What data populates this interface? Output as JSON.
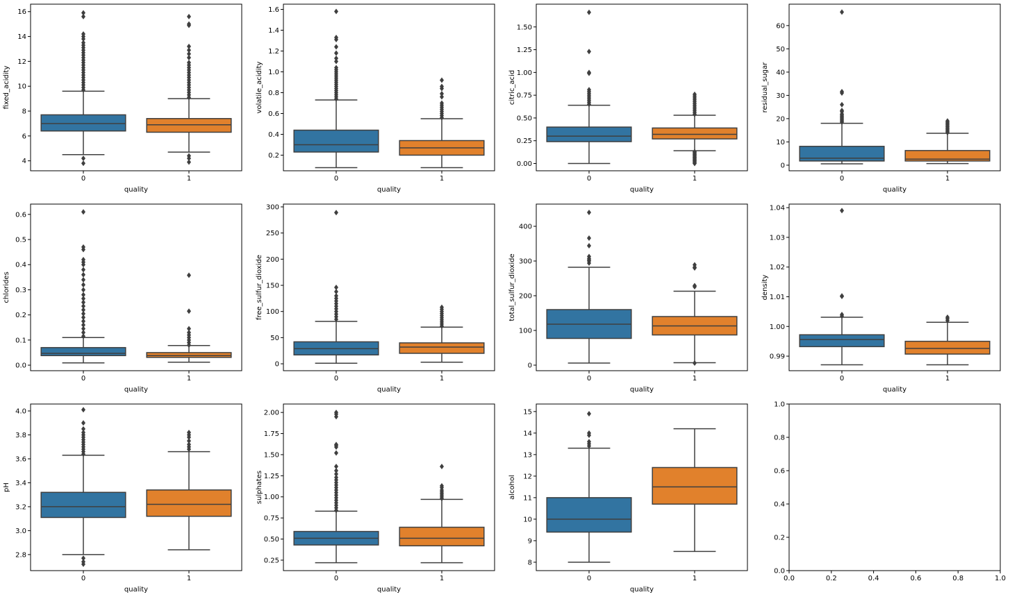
{
  "chart_data": [
    {
      "type": "box",
      "xlabel": "quality",
      "ylabel": "fixed_acidity",
      "categories": [
        "0",
        "1"
      ],
      "ylim": [
        3.2,
        16.6
      ],
      "yticks": [
        4,
        6,
        8,
        10,
        12,
        14,
        16
      ],
      "boxes": [
        {
          "color": "#3274a1",
          "whislo": 4.5,
          "q1": 6.4,
          "med": 7.0,
          "q3": 7.7,
          "whishi": 9.6,
          "fliers": [
            3.8,
            4.2,
            9.7,
            9.9,
            10.1,
            10.3,
            10.5,
            10.7,
            10.9,
            11.1,
            11.3,
            11.5,
            11.7,
            11.9,
            12.1,
            12.3,
            12.5,
            12.7,
            12.9,
            13.1,
            13.3,
            13.5,
            13.8,
            14.0,
            14.2,
            15.6,
            15.9
          ]
        },
        {
          "color": "#e1812c",
          "whislo": 4.7,
          "q1": 6.3,
          "med": 6.9,
          "q3": 7.4,
          "whishi": 9.0,
          "fliers": [
            3.9,
            4.2,
            4.4,
            9.1,
            9.3,
            9.5,
            9.7,
            9.9,
            10.1,
            10.3,
            10.5,
            10.7,
            10.9,
            11.1,
            11.3,
            11.5,
            11.7,
            11.9,
            12.3,
            12.6,
            12.9,
            13.2,
            14.9,
            15.0,
            15.6
          ]
        }
      ]
    },
    {
      "type": "box",
      "xlabel": "quality",
      "ylabel": "volatile_acidity",
      "categories": [
        "0",
        "1"
      ],
      "ylim": [
        0.05,
        1.65
      ],
      "yticks": [
        0.2,
        0.4,
        0.6,
        0.8,
        {
          "value": 1.0,
          "label": "1.0"
        },
        1.2,
        1.4,
        1.6
      ],
      "boxes": [
        {
          "color": "#3274a1",
          "whislo": 0.08,
          "q1": 0.23,
          "med": 0.3,
          "q3": 0.44,
          "whishi": 0.73,
          "fliers": [
            0.74,
            0.76,
            0.78,
            0.8,
            0.82,
            0.84,
            0.86,
            0.88,
            0.9,
            0.92,
            0.94,
            0.96,
            0.98,
            1.0,
            1.02,
            1.04,
            1.1,
            1.13,
            1.18,
            1.24,
            1.31,
            1.33,
            1.58
          ]
        },
        {
          "color": "#e1812c",
          "whislo": 0.08,
          "q1": 0.2,
          "med": 0.27,
          "q3": 0.34,
          "whishi": 0.55,
          "fliers": [
            0.56,
            0.58,
            0.6,
            0.62,
            0.64,
            0.66,
            0.68,
            0.7,
            0.76,
            0.79,
            0.84,
            0.86,
            0.92
          ]
        }
      ]
    },
    {
      "type": "box",
      "xlabel": "quality",
      "ylabel": "citric_acid",
      "categories": [
        "0",
        "1"
      ],
      "ylim": [
        -0.08,
        1.75
      ],
      "yticks": [
        {
          "value": 0,
          "label": "0.00"
        },
        0.25,
        {
          "value": 0.5,
          "label": "0.50"
        },
        0.75,
        {
          "value": 1.0,
          "label": "1.00"
        },
        1.25,
        {
          "value": 1.5,
          "label": "1.50"
        }
      ],
      "boxes": [
        {
          "color": "#3274a1",
          "whislo": 0,
          "q1": 0.24,
          "med": 0.3,
          "q3": 0.4,
          "whishi": 0.64,
          "fliers": [
            0.65,
            0.67,
            0.69,
            0.71,
            0.73,
            0.75,
            0.77,
            0.79,
            0.81,
            0.99,
            1.0,
            1.23,
            1.66
          ]
        },
        {
          "color": "#e1812c",
          "whislo": 0.14,
          "q1": 0.27,
          "med": 0.32,
          "q3": 0.39,
          "whishi": 0.53,
          "fliers": [
            0,
            0.01,
            0.02,
            0.03,
            0.04,
            0.05,
            0.06,
            0.07,
            0.08,
            0.09,
            0.1,
            0.11,
            0.12,
            0.13,
            0.54,
            0.56,
            0.58,
            0.6,
            0.62,
            0.64,
            0.66,
            0.68,
            0.7,
            0.72,
            0.74,
            0.76
          ]
        }
      ]
    },
    {
      "type": "box",
      "xlabel": "quality",
      "ylabel": "residual_sugar",
      "categories": [
        "0",
        "1"
      ],
      "ylim": [
        -2.4,
        69.2
      ],
      "yticks": [
        0,
        10,
        20,
        30,
        40,
        50,
        60
      ],
      "boxes": [
        {
          "color": "#3274a1",
          "whislo": 0.6,
          "q1": 1.8,
          "med": 3.0,
          "q3": 8.1,
          "whishi": 18,
          "fliers": [
            18.5,
            19,
            19.5,
            20,
            20.5,
            21,
            21.5,
            22,
            23,
            23.5,
            26,
            31,
            31.6,
            65.8
          ]
        },
        {
          "color": "#e1812c",
          "whislo": 0.7,
          "q1": 1.8,
          "med": 2.6,
          "q3": 6.3,
          "whishi": 13.7,
          "fliers": [
            14,
            14.5,
            15,
            15.5,
            16,
            16.5,
            17,
            17.5,
            18,
            18.5,
            19
          ]
        }
      ]
    },
    {
      "type": "box",
      "xlabel": "quality",
      "ylabel": "chlorides",
      "categories": [
        "0",
        "1"
      ],
      "ylim": [
        -0.022,
        0.641
      ],
      "yticks": [
        {
          "value": 0,
          "label": "0.0"
        },
        0.1,
        0.2,
        0.3,
        0.4,
        0.5,
        0.6
      ],
      "boxes": [
        {
          "color": "#3274a1",
          "whislo": 0.009,
          "q1": 0.038,
          "med": 0.047,
          "q3": 0.07,
          "whishi": 0.11,
          "fliers": [
            0.115,
            0.13,
            0.145,
            0.16,
            0.175,
            0.19,
            0.205,
            0.22,
            0.235,
            0.25,
            0.265,
            0.28,
            0.3,
            0.32,
            0.34,
            0.36,
            0.38,
            0.4,
            0.41,
            0.42,
            0.46,
            0.47,
            0.61
          ]
        },
        {
          "color": "#e1812c",
          "whislo": 0.012,
          "q1": 0.031,
          "med": 0.038,
          "q3": 0.05,
          "whishi": 0.078,
          "fliers": [
            0.08,
            0.09,
            0.1,
            0.11,
            0.12,
            0.13,
            0.145,
            0.215,
            0.358
          ]
        }
      ]
    },
    {
      "type": "box",
      "xlabel": "quality",
      "ylabel": "free_sulfur_dioxide",
      "categories": [
        "0",
        "1"
      ],
      "ylim": [
        -13.2,
        305.3
      ],
      "yticks": [
        0,
        50,
        100,
        150,
        200,
        250,
        300
      ],
      "boxes": [
        {
          "color": "#3274a1",
          "whislo": 1,
          "q1": 17,
          "med": 29,
          "q3": 42,
          "whishi": 81,
          "fliers": [
            85,
            90,
            95,
            100,
            105,
            110,
            115,
            120,
            125,
            130,
            138,
            146,
            289
          ]
        },
        {
          "color": "#e1812c",
          "whislo": 3,
          "q1": 20,
          "med": 32,
          "q3": 40,
          "whishi": 70,
          "fliers": [
            72,
            76,
            80,
            84,
            88,
            92,
            96,
            100,
            104,
            108
          ]
        }
      ]
    },
    {
      "type": "box",
      "xlabel": "quality",
      "ylabel": "total_sulfur_dioxide",
      "categories": [
        "0",
        "1"
      ],
      "ylim": [
        -16,
        464
      ],
      "yticks": [
        0,
        100,
        200,
        300,
        400
      ],
      "boxes": [
        {
          "color": "#3274a1",
          "whislo": 6,
          "q1": 77,
          "med": 118,
          "q3": 160,
          "whishi": 282,
          "fliers": [
            294,
            300,
            303,
            307,
            313,
            344,
            366,
            440
          ]
        },
        {
          "color": "#e1812c",
          "whislo": 7,
          "q1": 87,
          "med": 113,
          "q3": 140,
          "whishi": 213,
          "fliers": [
            6,
            226,
            229,
            280,
            282,
            289
          ]
        }
      ]
    },
    {
      "type": "box",
      "xlabel": "quality",
      "ylabel": "density",
      "categories": [
        "0",
        "1"
      ],
      "ylim": [
        0.9851,
        1.0412
      ],
      "yticks": [
        0.99,
        {
          "value": 1.0,
          "label": "1.00"
        },
        1.01,
        1.02,
        1.03,
        1.04
      ],
      "boxes": [
        {
          "color": "#3274a1",
          "whislo": 0.9871,
          "q1": 0.9932,
          "med": 0.9956,
          "q3": 0.9972,
          "whishi": 1.0031,
          "fliers": [
            1.0035,
            1.004,
            1.0101,
            1.0103,
            1.039
          ]
        },
        {
          "color": "#e1812c",
          "whislo": 0.9871,
          "q1": 0.9907,
          "med": 0.9926,
          "q3": 0.995,
          "whishi": 1.0014,
          "fliers": [
            1.002,
            1.0026,
            1.0031
          ]
        }
      ]
    },
    {
      "type": "box",
      "xlabel": "quality",
      "ylabel": "pH",
      "categories": [
        "0",
        "1"
      ],
      "ylim": [
        2.666,
        4.058
      ],
      "yticks": [
        2.8,
        {
          "value": 3.0,
          "label": "3.0"
        },
        3.2,
        3.4,
        3.6,
        3.8,
        {
          "value": 4.0,
          "label": "4.0"
        }
      ],
      "boxes": [
        {
          "color": "#3274a1",
          "whislo": 2.8,
          "q1": 3.11,
          "med": 3.2,
          "q3": 3.32,
          "whishi": 3.63,
          "fliers": [
            2.72,
            2.74,
            2.77,
            3.64,
            3.66,
            3.68,
            3.7,
            3.72,
            3.74,
            3.76,
            3.78,
            3.8,
            3.82,
            3.85,
            3.9,
            4.01
          ]
        },
        {
          "color": "#e1812c",
          "whislo": 2.84,
          "q1": 3.12,
          "med": 3.22,
          "q3": 3.34,
          "whishi": 3.66,
          "fliers": [
            3.68,
            3.7,
            3.72,
            3.75,
            3.78,
            3.8,
            3.82
          ]
        }
      ]
    },
    {
      "type": "box",
      "xlabel": "quality",
      "ylabel": "sulphates",
      "categories": [
        "0",
        "1"
      ],
      "ylim": [
        0.126,
        2.1
      ],
      "yticks": [
        0.25,
        {
          "value": 0.5,
          "label": "0.50"
        },
        0.75,
        {
          "value": 1.0,
          "label": "1.00"
        },
        1.25,
        {
          "value": 1.5,
          "label": "1.50"
        },
        1.75,
        {
          "value": 2.0,
          "label": "2.00"
        }
      ],
      "boxes": [
        {
          "color": "#3274a1",
          "whislo": 0.22,
          "q1": 0.43,
          "med": 0.51,
          "q3": 0.59,
          "whishi": 0.83,
          "fliers": [
            0.84,
            0.87,
            0.9,
            0.93,
            0.96,
            0.99,
            1.02,
            1.05,
            1.08,
            1.11,
            1.14,
            1.17,
            1.2,
            1.23,
            1.27,
            1.31,
            1.36,
            1.52,
            1.59,
            1.61,
            1.62,
            1.95,
            1.98,
            2.0
          ]
        },
        {
          "color": "#e1812c",
          "whislo": 0.22,
          "q1": 0.42,
          "med": 0.51,
          "q3": 0.64,
          "whishi": 0.97,
          "fliers": [
            0.98,
            1.0,
            1.02,
            1.04,
            1.06,
            1.08,
            1.11,
            1.13,
            1.36
          ]
        }
      ]
    },
    {
      "type": "box",
      "xlabel": "quality",
      "ylabel": "alcohol",
      "categories": [
        "0",
        "1"
      ],
      "ylim": [
        7.61,
        15.35
      ],
      "yticks": [
        8,
        9,
        10,
        11,
        12,
        13,
        14,
        15
      ],
      "boxes": [
        {
          "color": "#3274a1",
          "whislo": 8.0,
          "q1": 9.4,
          "med": 10.0,
          "q3": 11.0,
          "whishi": 13.3,
          "fliers": [
            13.4,
            13.5,
            13.6,
            13.9,
            14.0,
            14.9
          ]
        },
        {
          "color": "#e1812c",
          "whislo": 8.5,
          "q1": 10.7,
          "med": 11.5,
          "q3": 12.4,
          "whishi": 14.2,
          "fliers": []
        }
      ]
    },
    {
      "type": "empty",
      "xlim": [
        0,
        1
      ],
      "ylim": [
        0,
        1
      ],
      "xticks": [
        {
          "value": 0,
          "label": "0.0"
        },
        0.2,
        0.4,
        0.6,
        0.8,
        {
          "value": 1,
          "label": "1.0"
        }
      ],
      "yticks": [
        {
          "value": 0,
          "label": "0.0"
        },
        0.2,
        0.4,
        0.6,
        0.8,
        {
          "value": 1,
          "label": "1.0"
        }
      ]
    }
  ]
}
